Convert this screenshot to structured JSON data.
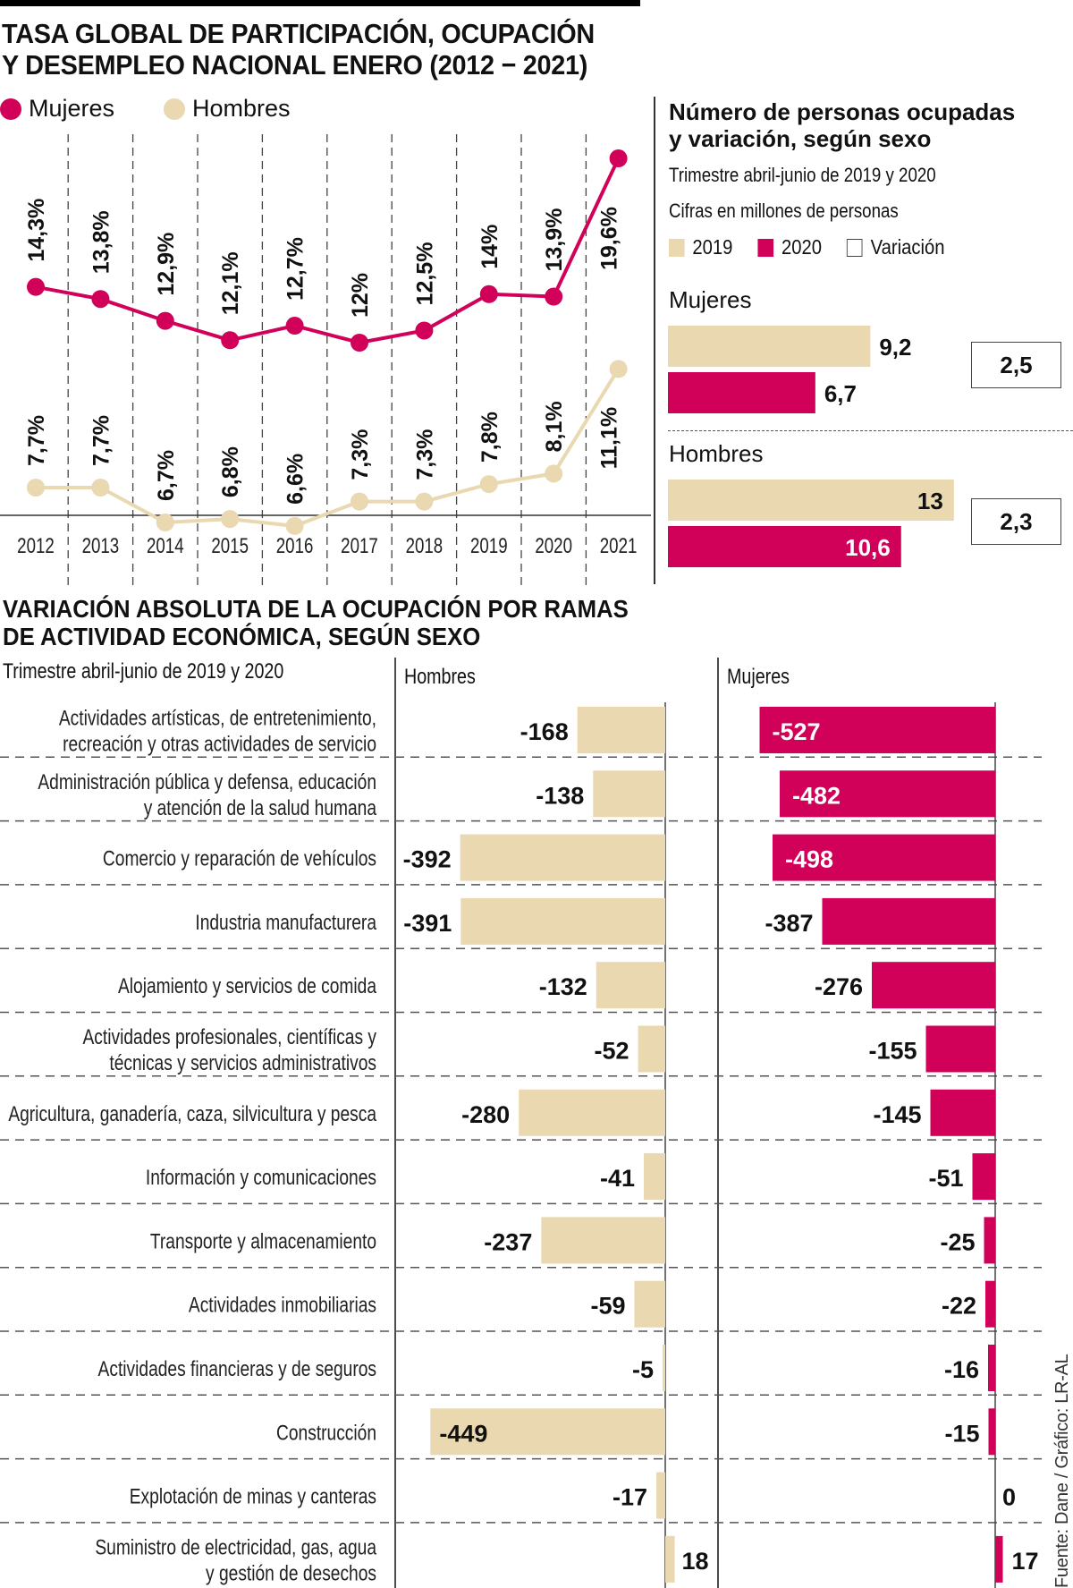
{
  "top_chart": {
    "title_line1": "TASA GLOBAL DE PARTICIPACIÓN, OCUPACIÓN",
    "title_line2": "Y DESEMPLEO NACIONAL ENERO (2012 − 2021)"
  },
  "panel": {
    "title_line1": "Número de personas ocupadas",
    "title_line2": "y variación, según sexo",
    "subtitle": "Trimestre abril-junio de 2019 y 2020",
    "units": "Cifras en millones de personas",
    "legend": [
      "2019",
      "2020",
      "Variación"
    ],
    "groups": [
      {
        "name": "Mujeres",
        "v2019": 9.2,
        "v2020": 6.7,
        "label2019": "9,2",
        "label2020": "6,7",
        "variation": "2,5"
      },
      {
        "name": "Hombres",
        "v2019": 13,
        "v2020": 10.6,
        "label2019": "13",
        "label2020": "10,6",
        "variation": "2,3"
      }
    ]
  },
  "bottom_chart": {
    "title_line1": "VARIACIÓN ABSOLUTA DE LA OCUPACIÓN POR RAMAS",
    "title_line2": "DE ACTIVIDAD ECONÓMICA, SEGÚN SEXO",
    "subtitle": "Trimestre abril-junio de 2019 y 2020",
    "col_hombres": "Hombres",
    "col_mujeres": "Mujeres"
  },
  "source": "Fuente: Dane / Gráfico: LR-AL",
  "colors": {
    "mujeres": "#D10059",
    "hombres": "#E9D8B0",
    "text": "#111111"
  },
  "chart_data": [
    {
      "type": "line",
      "title": "TASA GLOBAL DE PARTICIPACIÓN, OCUPACIÓN Y DESEMPLEO NACIONAL ENERO (2012 − 2021)",
      "x": [
        "2012",
        "2013",
        "2014",
        "2015",
        "2016",
        "2017",
        "2018",
        "2019",
        "2020",
        "2021"
      ],
      "legend_position": "top-left",
      "grid": "vertical-dashed",
      "series": [
        {
          "name": "Mujeres",
          "color": "#D10059",
          "values": [
            14.3,
            13.8,
            12.9,
            12.1,
            12.7,
            12.0,
            12.5,
            14.0,
            13.9,
            19.6
          ],
          "labels": [
            "14,3%",
            "13,8%",
            "12,9%",
            "12,1%",
            "12,7%",
            "12%",
            "12,5%",
            "14%",
            "13,9%",
            "19,6%"
          ]
        },
        {
          "name": "Hombres",
          "color": "#E9D8B0",
          "values": [
            7.7,
            7.7,
            6.7,
            6.8,
            6.6,
            7.3,
            7.3,
            7.8,
            8.1,
            11.1
          ],
          "labels": [
            "7,7%",
            "7,7%",
            "6,7%",
            "6,8%",
            "6,6%",
            "7,3%",
            "7,3%",
            "7,8%",
            "8,1%",
            "11,1%"
          ]
        }
      ]
    },
    {
      "type": "bar",
      "orientation": "horizontal",
      "title": "Número de personas ocupadas y variación, según sexo",
      "categories": [
        "Mujeres",
        "Hombres"
      ],
      "series": [
        {
          "name": "2019",
          "values": [
            9.2,
            13
          ]
        },
        {
          "name": "2020",
          "values": [
            6.7,
            10.6
          ]
        }
      ],
      "variation": [
        2.5,
        2.3
      ],
      "units": "millones de personas"
    },
    {
      "type": "bar",
      "orientation": "horizontal",
      "title": "VARIACIÓN ABSOLUTA DE LA OCUPACIÓN POR RAMAS DE ACTIVIDAD ECONÓMICA, SEGÚN SEXO",
      "categories": [
        [
          "Actividades artísticas, de entretenimiento,",
          "recreación y otras actividades de servicio"
        ],
        [
          "Administración pública y defensa, educación",
          "y atención de la salud humana"
        ],
        [
          "Comercio y reparación de vehículos"
        ],
        [
          "Industria manufacturera"
        ],
        [
          "Alojamiento y servicios de comida"
        ],
        [
          "Actividades profesionales, científicas y",
          "técnicas y servicios administrativos"
        ],
        [
          "Agricultura, ganadería, caza, silvicultura y pesca"
        ],
        [
          "Información y comunicaciones"
        ],
        [
          "Transporte y almacenamiento"
        ],
        [
          "Actividades inmobiliarias"
        ],
        [
          "Actividades financieras y de seguros"
        ],
        [
          "Construcción"
        ],
        [
          "Explotación de minas y canteras"
        ],
        [
          "Suministro de electricidad, gas, agua",
          "y gestión de desechos"
        ]
      ],
      "series": [
        {
          "name": "Hombres",
          "values": [
            -168,
            -138,
            -392,
            -391,
            -132,
            -52,
            -280,
            -41,
            -237,
            -59,
            -5,
            -449,
            -17,
            18
          ]
        },
        {
          "name": "Mujeres",
          "values": [
            -527,
            -482,
            -498,
            -387,
            -276,
            -155,
            -145,
            -51,
            -25,
            -22,
            -16,
            -15,
            0,
            17
          ]
        }
      ]
    }
  ]
}
